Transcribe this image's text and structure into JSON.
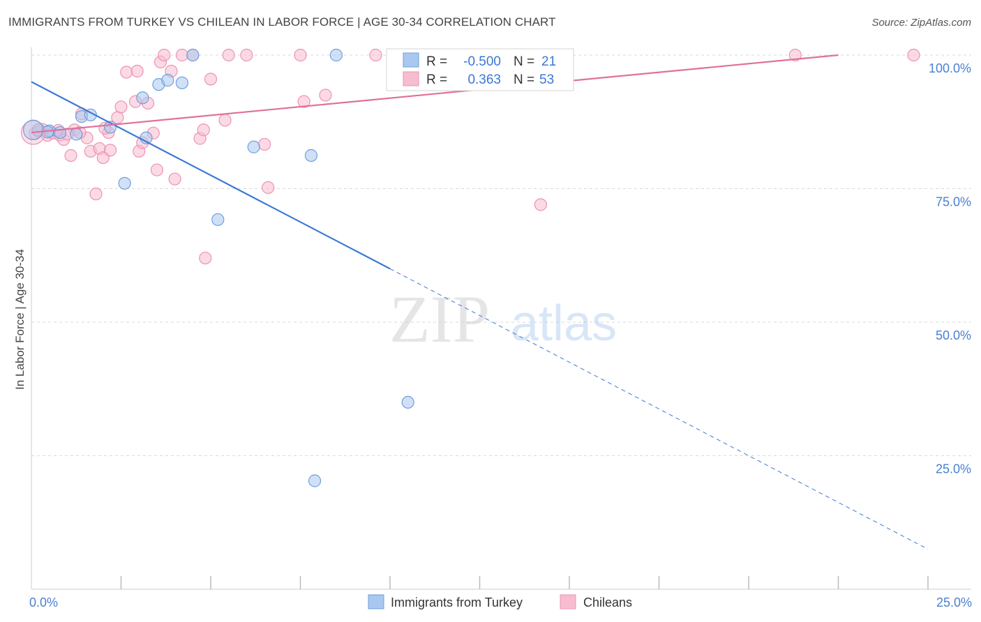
{
  "header": {
    "title": "IMMIGRANTS FROM TURKEY VS CHILEAN IN LABOR FORCE | AGE 30-34 CORRELATION CHART",
    "source": "Source: ZipAtlas.com"
  },
  "watermark": {
    "zip": "ZIP",
    "atlas": "atlas"
  },
  "colors": {
    "turkey_fill": "#a9c8f0",
    "turkey_stroke": "#6e9fdc",
    "turkey_line": "#3a78d4",
    "chile_fill": "#f7bcd0",
    "chile_stroke": "#ec93b2",
    "chile_line": "#e0709a",
    "axis_label": "#4a7fd0",
    "grid": "#d9d9d9"
  },
  "legend": {
    "rows": [
      {
        "r_label": "R =",
        "r_value": "-0.500",
        "n_label": "N =",
        "n_value": "21"
      },
      {
        "r_label": "R =",
        "r_value": "0.363",
        "n_label": "N =",
        "n_value": "53"
      }
    ]
  },
  "chart_data": {
    "type": "scatter",
    "xlabel": "",
    "ylabel": "In Labor Force | Age 30-34",
    "xlim": [
      0,
      25
    ],
    "ylim": [
      0,
      100
    ],
    "x_tick_labels": [
      "0.0%",
      "25.0%"
    ],
    "y_ticks": [
      25,
      50,
      75,
      100
    ],
    "y_tick_labels": [
      "25.0%",
      "50.0%",
      "75.0%",
      "100.0%"
    ],
    "grid": true,
    "legend_position": "bottom",
    "series": [
      {
        "name": "Immigrants from Turkey",
        "points": [
          [
            0.2,
            86.0
          ],
          [
            0.5,
            85.8
          ],
          [
            0.8,
            85.5
          ],
          [
            1.4,
            88.5
          ],
          [
            1.65,
            88.8
          ],
          [
            2.2,
            86.5
          ],
          [
            2.6,
            76.0
          ],
          [
            3.1,
            92.0
          ],
          [
            3.2,
            84.5
          ],
          [
            3.55,
            94.5
          ],
          [
            3.8,
            95.3
          ],
          [
            4.2,
            94.8
          ],
          [
            4.5,
            100.0
          ],
          [
            5.2,
            69.2
          ],
          [
            6.2,
            82.8
          ],
          [
            7.8,
            81.2
          ],
          [
            8.5,
            100.0
          ],
          [
            10.5,
            35.0
          ],
          [
            0.45,
            85.6
          ],
          [
            1.25,
            85.2
          ],
          [
            7.9,
            20.3
          ]
        ],
        "trend": {
          "x": [
            0.0,
            10.0
          ],
          "y": [
            95.0,
            60.0
          ],
          "dashed_to": [
            25.0,
            7.5
          ]
        }
      },
      {
        "name": "Chileans",
        "points": [
          [
            0.1,
            85.3
          ],
          [
            0.2,
            85.7
          ],
          [
            0.3,
            86.1
          ],
          [
            0.45,
            85.0
          ],
          [
            0.6,
            85.4
          ],
          [
            0.8,
            85.0
          ],
          [
            0.9,
            84.2
          ],
          [
            1.1,
            81.2
          ],
          [
            1.2,
            86.0
          ],
          [
            1.4,
            89.0
          ],
          [
            1.55,
            84.5
          ],
          [
            1.65,
            82.0
          ],
          [
            1.8,
            74.0
          ],
          [
            1.9,
            82.5
          ],
          [
            2.0,
            80.8
          ],
          [
            2.15,
            85.5
          ],
          [
            2.2,
            82.2
          ],
          [
            2.4,
            88.3
          ],
          [
            2.5,
            90.3
          ],
          [
            2.65,
            96.8
          ],
          [
            2.9,
            91.3
          ],
          [
            2.95,
            97.0
          ],
          [
            3.0,
            82.0
          ],
          [
            3.1,
            83.6
          ],
          [
            3.25,
            91.0
          ],
          [
            3.4,
            85.4
          ],
          [
            3.5,
            78.5
          ],
          [
            3.6,
            98.7
          ],
          [
            3.7,
            100.0
          ],
          [
            3.9,
            97.0
          ],
          [
            4.0,
            76.8
          ],
          [
            4.2,
            100.0
          ],
          [
            4.5,
            100.0
          ],
          [
            4.7,
            84.4
          ],
          [
            4.8,
            86.0
          ],
          [
            4.85,
            62.0
          ],
          [
            5.0,
            95.5
          ],
          [
            5.4,
            87.8
          ],
          [
            5.5,
            100.0
          ],
          [
            6.0,
            100.0
          ],
          [
            6.5,
            83.3
          ],
          [
            6.6,
            75.2
          ],
          [
            7.5,
            100.0
          ],
          [
            7.6,
            91.3
          ],
          [
            8.2,
            92.5
          ],
          [
            9.6,
            100.0
          ],
          [
            14.2,
            72.0
          ],
          [
            21.3,
            100.0
          ],
          [
            24.6,
            100.0
          ],
          [
            1.35,
            85.5
          ],
          [
            2.05,
            86.3
          ],
          [
            0.75,
            85.9
          ],
          [
            1.0,
            85.2
          ]
        ],
        "trend": {
          "x": [
            0.0,
            22.5
          ],
          "y": [
            85.5,
            100.0
          ]
        }
      }
    ]
  }
}
